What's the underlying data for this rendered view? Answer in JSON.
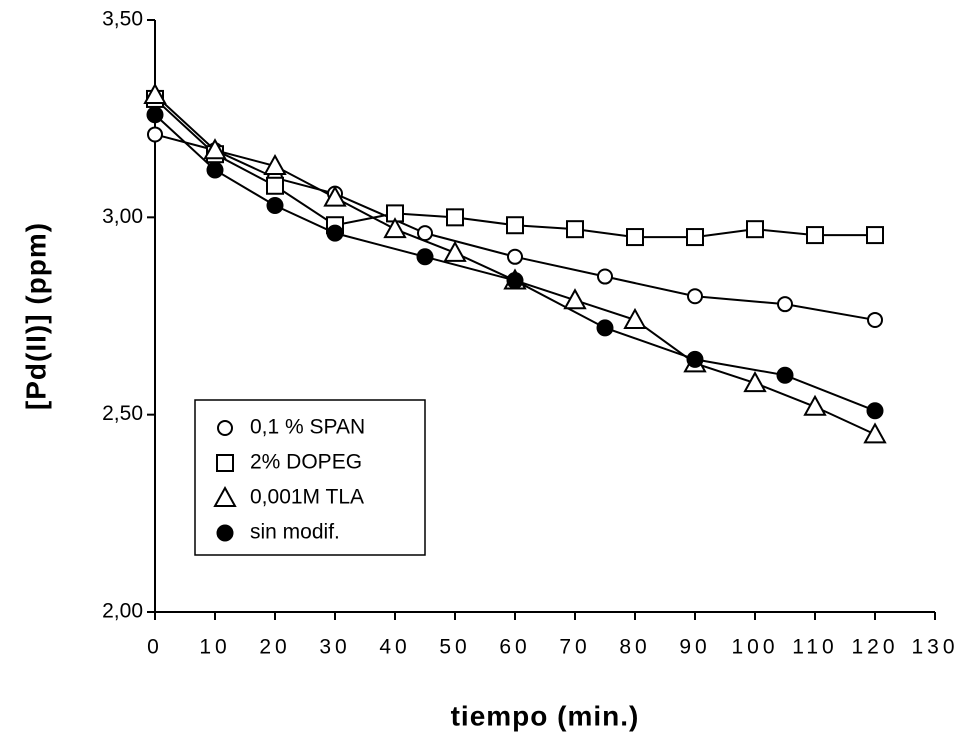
{
  "chart_data": {
    "type": "scatter",
    "x_label": "tiempo   (min.)",
    "y_label": "[Pd(II)]   (ppm)",
    "xlim": [
      0,
      130
    ],
    "xticks": [
      0,
      10,
      20,
      30,
      40,
      50,
      60,
      70,
      80,
      90,
      100,
      110,
      120,
      130
    ],
    "ylim": [
      2.0,
      3.5
    ],
    "yticks": [
      {
        "value": 2.0,
        "label": "2,00"
      },
      {
        "value": 2.5,
        "label": "2,50"
      },
      {
        "value": 3.0,
        "label": "3,00"
      },
      {
        "value": 3.5,
        "label": "3,50"
      }
    ],
    "series": [
      {
        "name": "0,1 % SPAN",
        "color": "#000000",
        "marker": "circle",
        "x": [
          0,
          10,
          20,
          30,
          45,
          60,
          75,
          90,
          105,
          120
        ],
        "values": [
          3.21,
          3.17,
          3.1,
          3.06,
          2.96,
          2.9,
          2.85,
          2.8,
          2.78,
          2.74
        ]
      },
      {
        "name": "2% DOPEG",
        "color": "#000000",
        "marker": "square",
        "x": [
          0,
          10,
          20,
          30,
          40,
          50,
          60,
          70,
          80,
          90,
          100,
          110,
          120
        ],
        "values": [
          3.3,
          3.16,
          3.08,
          2.98,
          3.01,
          3.0,
          2.98,
          2.97,
          2.95,
          2.95,
          2.97,
          2.955,
          2.955
        ]
      },
      {
        "name": "0,001M TLA",
        "color": "#000000",
        "marker": "triangle",
        "x": [
          0,
          10,
          20,
          30,
          40,
          50,
          60,
          70,
          80,
          90,
          100,
          110,
          120
        ],
        "values": [
          3.31,
          3.17,
          3.13,
          3.05,
          2.97,
          2.91,
          2.84,
          2.79,
          2.74,
          2.63,
          2.58,
          2.52,
          2.45
        ]
      },
      {
        "name": "sin modif.",
        "color": "#000000",
        "marker": "dot",
        "x": [
          0,
          10,
          20,
          30,
          45,
          60,
          75,
          90,
          105,
          120
        ],
        "values": [
          3.26,
          3.12,
          3.03,
          2.96,
          2.9,
          2.84,
          2.72,
          2.64,
          2.6,
          2.51
        ]
      }
    ]
  }
}
